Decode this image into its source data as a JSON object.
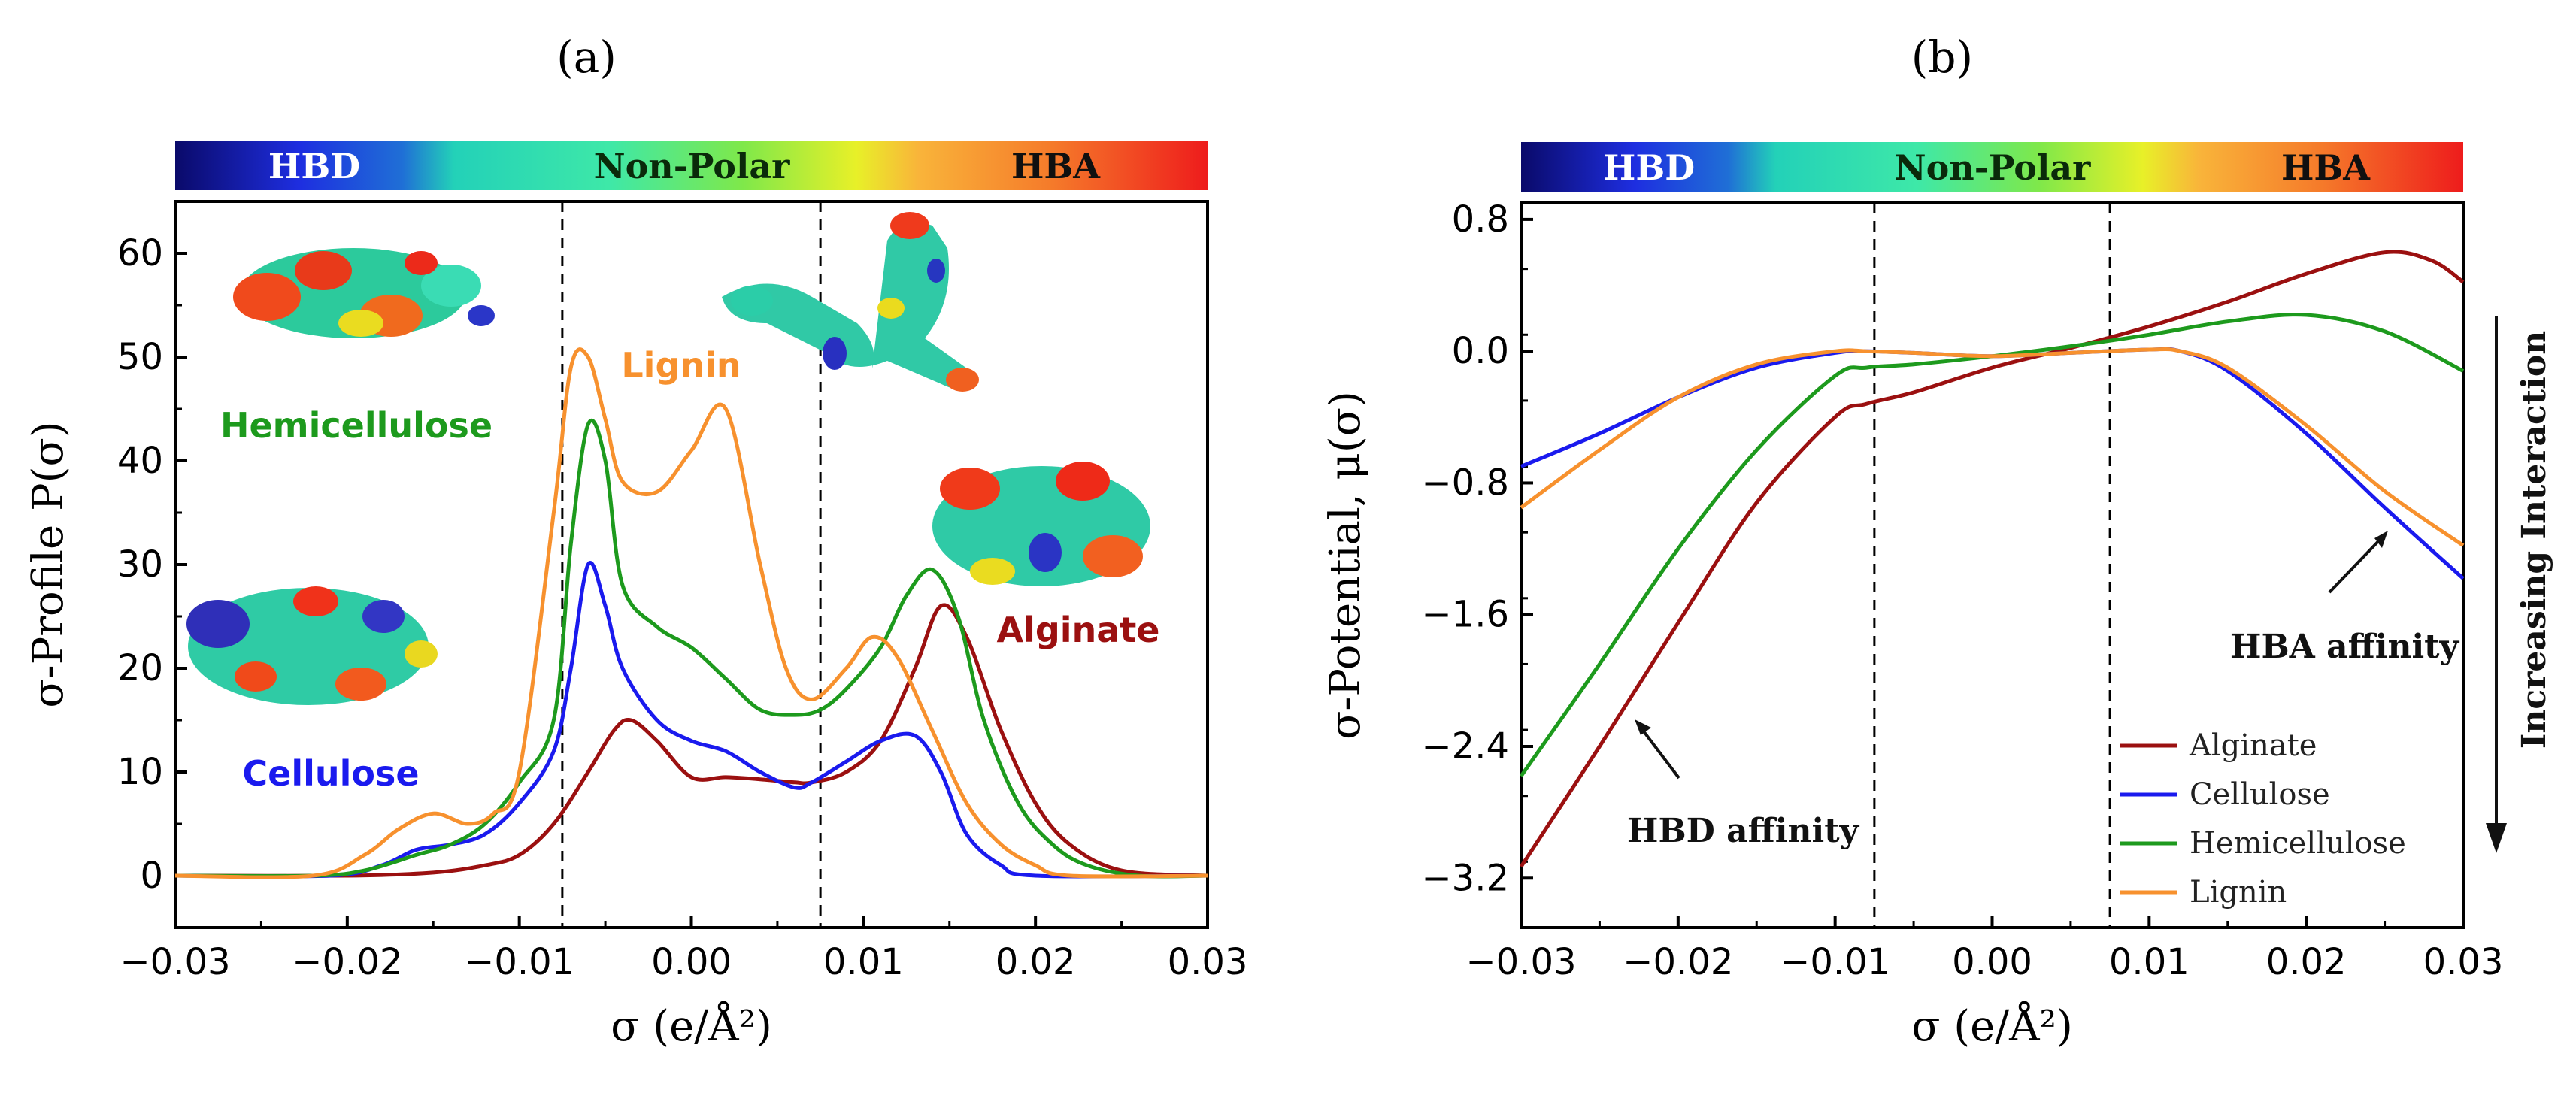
{
  "chart_data": [
    {
      "panel": "(a)",
      "type": "line",
      "title": "",
      "xlabel": "σ (e/Å²)",
      "ylabel": "σ-Profile P(σ)",
      "xlim": [
        -0.03,
        0.03
      ],
      "ylim": [
        -5,
        65
      ],
      "xticks": [
        "−0.03",
        "−0.02",
        "−0.01",
        "0.00",
        "0.01",
        "0.02",
        "0.03"
      ],
      "yticks": [
        "0",
        "10",
        "20",
        "30",
        "40",
        "50",
        "60"
      ],
      "dividers": [
        -0.0075,
        0.0075
      ],
      "colorbar": {
        "labels": [
          "HBD",
          "Non-Polar",
          "HBA"
        ]
      },
      "molecule_labels": {
        "hemicellulose": "Hemicellulose",
        "lignin": "Lignin",
        "cellulose": "Cellulose",
        "alginate": "Alginate"
      },
      "series": [
        {
          "name": "Alginate",
          "color": "#9b1010",
          "x": [
            -0.03,
            -0.02,
            -0.015,
            -0.012,
            -0.01,
            -0.008,
            -0.006,
            -0.0045,
            -0.0035,
            -0.002,
            0,
            0.002,
            0.004,
            0.006,
            0.007,
            0.009,
            0.011,
            0.013,
            0.0145,
            0.016,
            0.018,
            0.02,
            0.022,
            0.025,
            0.03
          ],
          "values": [
            0,
            0,
            0.3,
            1,
            2,
            5,
            10,
            14,
            15,
            13,
            9.5,
            9.5,
            9.3,
            9,
            9,
            10,
            13,
            20,
            26,
            23,
            14,
            7,
            3,
            0.5,
            0
          ]
        },
        {
          "name": "Cellulose",
          "color": "#1a1aee",
          "x": [
            -0.03,
            -0.021,
            -0.018,
            -0.016,
            -0.014,
            -0.012,
            -0.01,
            -0.008,
            -0.007,
            -0.006,
            -0.005,
            -0.004,
            -0.002,
            0,
            0.002,
            0.004,
            0.006,
            0.007,
            0.009,
            0.011,
            0.013,
            0.0145,
            0.016,
            0.018,
            0.02,
            0.03
          ],
          "values": [
            0,
            0,
            1,
            2.5,
            3,
            4,
            7,
            12,
            20,
            30,
            26,
            20,
            15,
            13,
            12,
            10,
            8.5,
            9,
            11,
            13,
            13.5,
            10,
            4,
            1,
            0,
            0
          ]
        },
        {
          "name": "Hemicellulose",
          "color": "#1d9a1d",
          "x": [
            -0.03,
            -0.022,
            -0.019,
            -0.016,
            -0.014,
            -0.012,
            -0.01,
            -0.008,
            -0.007,
            -0.006,
            -0.005,
            -0.004,
            -0.002,
            0,
            0.002,
            0.004,
            0.006,
            0.0075,
            0.009,
            0.011,
            0.0125,
            0.014,
            0.0155,
            0.017,
            0.019,
            0.021,
            0.023,
            0.026,
            0.03
          ],
          "values": [
            0,
            0,
            0.5,
            2,
            3,
            5,
            9,
            15,
            32,
            43.5,
            40,
            28,
            24,
            22,
            19,
            16,
            15.5,
            16,
            18,
            22,
            27,
            29.5,
            25,
            15,
            7,
            3,
            1,
            0,
            0
          ]
        },
        {
          "name": "Lignin",
          "color": "#f7912e",
          "x": [
            -0.03,
            -0.022,
            -0.019,
            -0.017,
            -0.015,
            -0.013,
            -0.0115,
            -0.01,
            -0.008,
            -0.007,
            -0.006,
            -0.005,
            -0.004,
            -0.002,
            0,
            0.002,
            0.004,
            0.0055,
            0.007,
            0.009,
            0.0105,
            0.012,
            0.014,
            0.016,
            0.018,
            0.02,
            0.022,
            0.03
          ],
          "values": [
            0,
            0,
            2,
            4.5,
            6,
            5,
            6,
            10,
            35,
            49,
            50,
            44,
            38,
            37,
            41,
            45,
            30,
            20,
            17,
            20,
            23,
            21,
            14,
            7,
            3,
            1,
            0,
            0
          ]
        }
      ]
    },
    {
      "panel": "(b)",
      "type": "line",
      "title": "",
      "xlabel": "σ (e/Å²)",
      "ylabel": "σ-Potential, μ(σ)",
      "xlim": [
        -0.03,
        0.03
      ],
      "ylim": [
        -3.5,
        0.9
      ],
      "xticks": [
        "−0.03",
        "−0.02",
        "−0.01",
        "0.00",
        "0.01",
        "0.02",
        "0.03"
      ],
      "yticks": [
        "0.8",
        "0.0",
        "−0.8",
        "−1.6",
        "−2.4",
        "−3.2"
      ],
      "dividers": [
        -0.0075,
        0.0075
      ],
      "colorbar": {
        "labels": [
          "HBD",
          "Non-Polar",
          "HBA"
        ]
      },
      "annotations": {
        "hbd_affinity": "HBD affinity",
        "hba_affinity": "HBA affinity",
        "increasing_interaction": "Increasing Interaction"
      },
      "legend": [
        "Alginate",
        "Cellulose",
        "Hemicellulose",
        "Lignin"
      ],
      "series": [
        {
          "name": "Alginate",
          "color": "#9b1010",
          "x": [
            -0.03,
            -0.025,
            -0.02,
            -0.015,
            -0.01,
            -0.008,
            -0.005,
            0,
            0.005,
            0.01,
            0.015,
            0.02,
            0.025,
            0.028,
            0.03
          ],
          "values": [
            -3.13,
            -2.4,
            -1.65,
            -0.92,
            -0.4,
            -0.32,
            -0.25,
            -0.1,
            0.02,
            0.15,
            0.3,
            0.47,
            0.6,
            0.55,
            0.42
          ]
        },
        {
          "name": "Cellulose",
          "color": "#1a1aee",
          "x": [
            -0.03,
            -0.025,
            -0.02,
            -0.015,
            -0.01,
            -0.008,
            -0.005,
            0,
            0.005,
            0.01,
            0.012,
            0.015,
            0.02,
            0.025,
            0.03
          ],
          "values": [
            -0.7,
            -0.5,
            -0.28,
            -0.1,
            -0.01,
            0,
            -0.01,
            -0.03,
            -0.01,
            0.01,
            0,
            -0.12,
            -0.5,
            -0.95,
            -1.38
          ]
        },
        {
          "name": "Hemicellulose",
          "color": "#1d9a1d",
          "x": [
            -0.03,
            -0.025,
            -0.02,
            -0.015,
            -0.01,
            -0.008,
            -0.005,
            0,
            0.005,
            0.01,
            0.015,
            0.02,
            0.025,
            0.03
          ],
          "values": [
            -2.58,
            -1.9,
            -1.2,
            -0.6,
            -0.15,
            -0.1,
            -0.08,
            -0.03,
            0.03,
            0.1,
            0.18,
            0.22,
            0.12,
            -0.12
          ]
        },
        {
          "name": "Lignin",
          "color": "#f7912e",
          "x": [
            -0.03,
            -0.025,
            -0.02,
            -0.015,
            -0.01,
            -0.008,
            -0.005,
            0,
            0.005,
            0.01,
            0.012,
            0.015,
            0.02,
            0.025,
            0.03
          ],
          "values": [
            -0.95,
            -0.6,
            -0.28,
            -0.08,
            0,
            0,
            -0.01,
            -0.03,
            -0.01,
            0.01,
            0,
            -0.1,
            -0.45,
            -0.85,
            -1.18
          ]
        }
      ]
    }
  ]
}
